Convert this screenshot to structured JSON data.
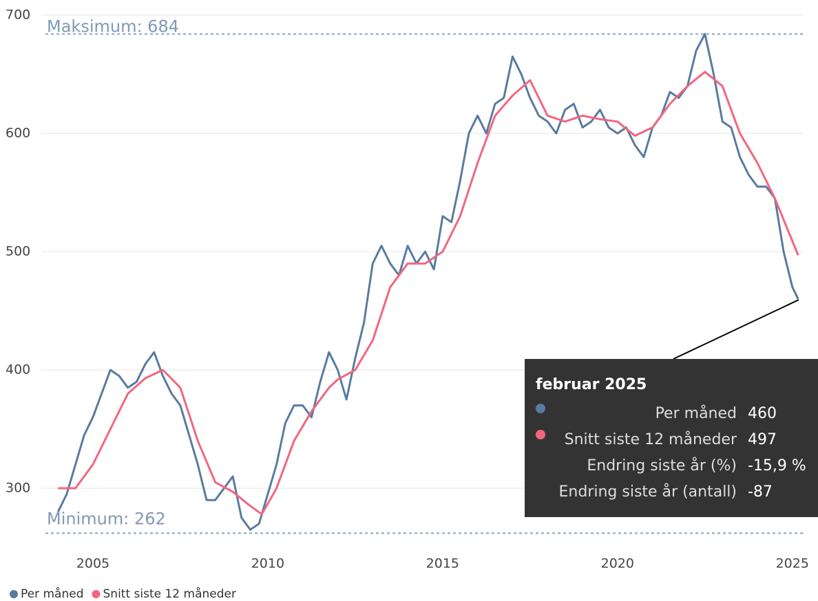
{
  "chart_data": {
    "type": "line",
    "xlim": [
      2003.8,
      2025.3
    ],
    "xticks": [
      2005,
      2010,
      2015,
      2020,
      2025
    ],
    "ylim": [
      250,
      700
    ],
    "yticks": [
      300,
      400,
      500,
      600,
      700
    ],
    "grid": true,
    "legend": "bottom-left",
    "series": [
      {
        "name": "Per måned",
        "color": "#587ba0",
        "x": [
          2004.0,
          2004.25,
          2004.5,
          2004.75,
          2005.0,
          2005.25,
          2005.5,
          2005.75,
          2006.0,
          2006.25,
          2006.5,
          2006.75,
          2007.0,
          2007.25,
          2007.5,
          2007.75,
          2008.0,
          2008.25,
          2008.5,
          2008.75,
          2009.0,
          2009.25,
          2009.5,
          2009.75,
          2010.0,
          2010.25,
          2010.5,
          2010.75,
          2011.0,
          2011.25,
          2011.5,
          2011.75,
          2012.0,
          2012.25,
          2012.5,
          2012.75,
          2013.0,
          2013.25,
          2013.5,
          2013.75,
          2014.0,
          2014.25,
          2014.5,
          2014.75,
          2015.0,
          2015.25,
          2015.5,
          2015.75,
          2016.0,
          2016.25,
          2016.5,
          2016.75,
          2017.0,
          2017.25,
          2017.5,
          2017.75,
          2018.0,
          2018.25,
          2018.5,
          2018.75,
          2019.0,
          2019.25,
          2019.5,
          2019.75,
          2020.0,
          2020.25,
          2020.5,
          2020.75,
          2021.0,
          2021.25,
          2021.5,
          2021.75,
          2022.0,
          2022.25,
          2022.5,
          2022.75,
          2023.0,
          2023.25,
          2023.5,
          2023.75,
          2024.0,
          2024.25,
          2024.5,
          2024.75,
          2025.0,
          2025.167
        ],
        "values": [
          280,
          295,
          320,
          345,
          360,
          380,
          400,
          395,
          385,
          390,
          405,
          415,
          395,
          380,
          370,
          345,
          320,
          290,
          290,
          300,
          310,
          275,
          265,
          270,
          295,
          320,
          355,
          370,
          370,
          360,
          390,
          415,
          400,
          375,
          410,
          440,
          490,
          505,
          490,
          480,
          505,
          490,
          500,
          485,
          530,
          525,
          560,
          600,
          615,
          600,
          625,
          630,
          665,
          650,
          630,
          615,
          610,
          600,
          620,
          625,
          605,
          610,
          620,
          605,
          600,
          605,
          590,
          580,
          605,
          615,
          635,
          630,
          640,
          670,
          684,
          650,
          610,
          605,
          580,
          565,
          555,
          555,
          545,
          500,
          470,
          460
        ]
      },
      {
        "name": "Snitt siste 12 måneder",
        "color": "#f2667e",
        "x": [
          2004.0,
          2004.5,
          2005.0,
          2005.5,
          2006.0,
          2006.5,
          2007.0,
          2007.5,
          2008.0,
          2008.5,
          2009.0,
          2009.5,
          2009.83,
          2010.25,
          2010.75,
          2011.25,
          2011.75,
          2012.0,
          2012.5,
          2013.0,
          2013.5,
          2014.0,
          2014.5,
          2015.0,
          2015.5,
          2016.0,
          2016.5,
          2017.0,
          2017.5,
          2018.0,
          2018.5,
          2019.0,
          2019.5,
          2020.0,
          2020.5,
          2021.0,
          2021.5,
          2022.0,
          2022.5,
          2023.0,
          2023.5,
          2024.0,
          2024.5,
          2025.167
        ],
        "values": [
          300,
          300,
          320,
          350,
          380,
          393,
          400,
          385,
          340,
          305,
          297,
          285,
          278,
          300,
          340,
          365,
          385,
          392,
          400,
          425,
          470,
          490,
          490,
          500,
          530,
          575,
          615,
          632,
          645,
          615,
          610,
          615,
          612,
          610,
          598,
          605,
          625,
          640,
          652,
          640,
          600,
          575,
          545,
          497
        ]
      }
    ],
    "annotations": [
      {
        "label": "Maksimum: 684",
        "value": 684
      },
      {
        "label": "Minimum: 262",
        "value": 262
      }
    ],
    "tooltip": {
      "title": "februar 2025",
      "rows": [
        {
          "label": "Per måned",
          "value": "460"
        },
        {
          "label": "Snitt siste 12 måneder",
          "value": "497"
        },
        {
          "label": "Endring siste år (%)",
          "value": "-15,9 %"
        },
        {
          "label": "Endring siste år (antall)",
          "value": "-87"
        }
      ]
    }
  }
}
